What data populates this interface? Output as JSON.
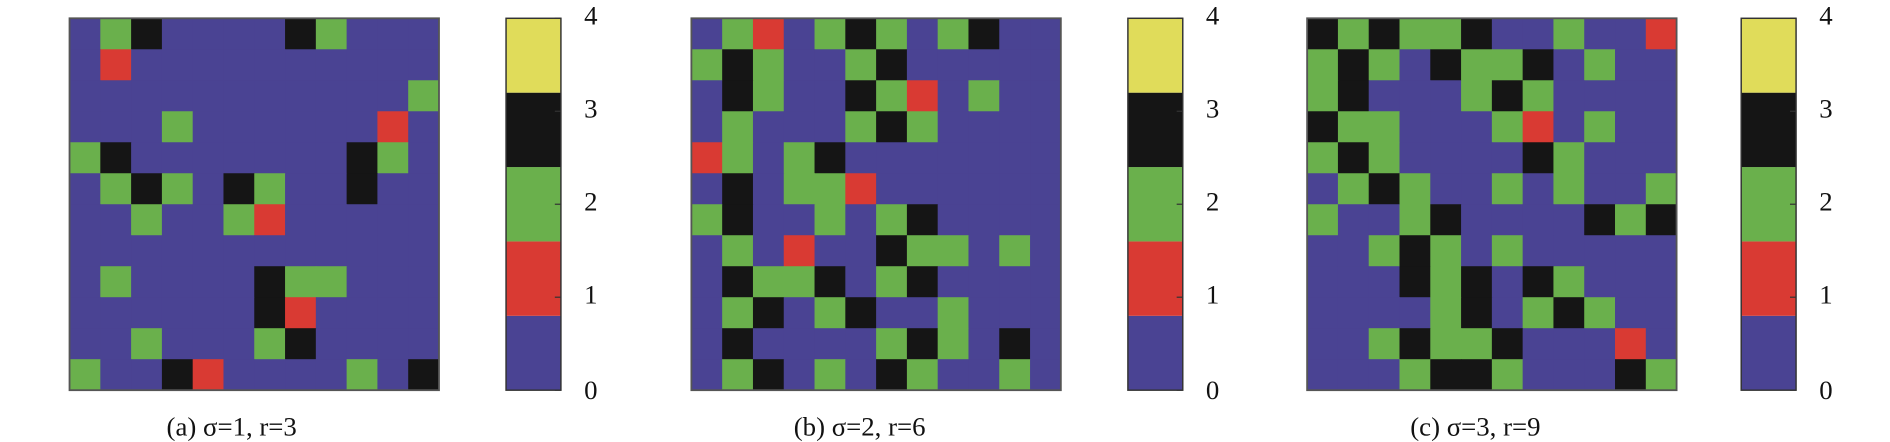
{
  "chart_data": [
    {
      "type": "heatmap",
      "caption": "(a) σ=1, r=3",
      "clim": [
        0,
        4
      ],
      "cticks": [
        0,
        1,
        2,
        3,
        4
      ],
      "levels": [
        0,
        1,
        2,
        3,
        4
      ],
      "colors": [
        "#4a4393",
        "#d93a33",
        "#6ab04c",
        "#151515",
        "#e0dc5a"
      ],
      "z": [
        [
          0,
          2,
          3,
          0,
          0,
          0,
          0,
          3,
          2,
          0,
          0,
          0
        ],
        [
          0,
          1,
          0,
          0,
          0,
          0,
          0,
          0,
          0,
          0,
          0,
          0
        ],
        [
          0,
          0,
          0,
          0,
          0,
          0,
          0,
          0,
          0,
          0,
          0,
          2
        ],
        [
          0,
          0,
          0,
          2,
          0,
          0,
          0,
          0,
          0,
          0,
          1,
          0
        ],
        [
          2,
          3,
          0,
          0,
          0,
          0,
          0,
          0,
          0,
          3,
          2,
          0
        ],
        [
          0,
          2,
          3,
          2,
          0,
          3,
          2,
          0,
          0,
          3,
          0,
          0
        ],
        [
          0,
          0,
          2,
          0,
          0,
          2,
          1,
          0,
          0,
          0,
          0,
          0
        ],
        [
          0,
          0,
          0,
          0,
          0,
          0,
          0,
          0,
          0,
          0,
          0,
          0
        ],
        [
          0,
          2,
          0,
          0,
          0,
          0,
          3,
          2,
          2,
          0,
          0,
          0
        ],
        [
          0,
          0,
          0,
          0,
          0,
          0,
          3,
          1,
          0,
          0,
          0,
          0
        ],
        [
          0,
          0,
          2,
          0,
          0,
          0,
          2,
          3,
          0,
          0,
          0,
          0
        ],
        [
          2,
          0,
          0,
          3,
          1,
          0,
          0,
          0,
          0,
          2,
          0,
          3
        ]
      ]
    },
    {
      "type": "heatmap",
      "caption": "(b) σ=2, r=6",
      "clim": [
        0,
        4
      ],
      "cticks": [
        0,
        1,
        2,
        3,
        4
      ],
      "levels": [
        0,
        1,
        2,
        3,
        4
      ],
      "colors": [
        "#4a4393",
        "#d93a33",
        "#6ab04c",
        "#151515",
        "#e0dc5a"
      ],
      "z": [
        [
          0,
          2,
          1,
          0,
          2,
          3,
          2,
          0,
          2,
          3,
          0,
          0
        ],
        [
          2,
          3,
          2,
          0,
          0,
          2,
          3,
          0,
          0,
          0,
          0,
          0
        ],
        [
          0,
          3,
          2,
          0,
          0,
          3,
          2,
          1,
          0,
          2,
          0,
          0
        ],
        [
          0,
          2,
          0,
          0,
          0,
          2,
          3,
          2,
          0,
          0,
          0,
          0
        ],
        [
          1,
          2,
          0,
          2,
          3,
          0,
          0,
          0,
          0,
          0,
          0,
          0
        ],
        [
          0,
          3,
          0,
          2,
          2,
          1,
          0,
          0,
          0,
          0,
          0,
          0
        ],
        [
          2,
          3,
          0,
          0,
          2,
          0,
          2,
          3,
          0,
          0,
          0,
          0
        ],
        [
          0,
          2,
          0,
          1,
          0,
          0,
          3,
          2,
          2,
          0,
          2,
          0
        ],
        [
          0,
          3,
          2,
          2,
          3,
          0,
          2,
          3,
          0,
          0,
          0,
          0
        ],
        [
          0,
          2,
          3,
          0,
          2,
          3,
          0,
          0,
          2,
          0,
          0,
          0
        ],
        [
          0,
          3,
          0,
          0,
          0,
          0,
          2,
          3,
          2,
          0,
          3,
          0
        ],
        [
          0,
          2,
          3,
          0,
          2,
          0,
          3,
          2,
          0,
          0,
          2,
          0
        ]
      ]
    },
    {
      "type": "heatmap",
      "caption": "(c) σ=3, r=9",
      "clim": [
        0,
        4
      ],
      "cticks": [
        0,
        1,
        2,
        3,
        4
      ],
      "levels": [
        0,
        1,
        2,
        3,
        4
      ],
      "colors": [
        "#4a4393",
        "#d93a33",
        "#6ab04c",
        "#151515",
        "#e0dc5a"
      ],
      "z": [
        [
          3,
          2,
          3,
          2,
          2,
          3,
          0,
          0,
          2,
          0,
          0,
          1
        ],
        [
          2,
          3,
          2,
          0,
          3,
          2,
          2,
          3,
          0,
          2,
          0,
          0
        ],
        [
          2,
          3,
          0,
          0,
          0,
          2,
          3,
          2,
          0,
          0,
          0,
          0
        ],
        [
          3,
          2,
          2,
          0,
          0,
          0,
          2,
          1,
          0,
          2,
          0,
          0
        ],
        [
          2,
          3,
          2,
          0,
          0,
          0,
          0,
          3,
          2,
          0,
          0,
          0
        ],
        [
          0,
          2,
          3,
          2,
          0,
          0,
          2,
          0,
          2,
          0,
          0,
          2
        ],
        [
          2,
          0,
          0,
          2,
          3,
          0,
          0,
          0,
          0,
          3,
          2,
          3
        ],
        [
          0,
          0,
          2,
          3,
          2,
          0,
          2,
          0,
          0,
          0,
          0,
          0
        ],
        [
          0,
          0,
          0,
          3,
          2,
          3,
          0,
          3,
          2,
          0,
          0,
          0
        ],
        [
          0,
          0,
          0,
          0,
          2,
          3,
          0,
          2,
          3,
          2,
          0,
          0
        ],
        [
          0,
          0,
          2,
          3,
          2,
          2,
          3,
          0,
          0,
          0,
          1,
          0
        ],
        [
          0,
          0,
          0,
          2,
          3,
          3,
          2,
          0,
          0,
          0,
          3,
          2
        ]
      ]
    }
  ]
}
